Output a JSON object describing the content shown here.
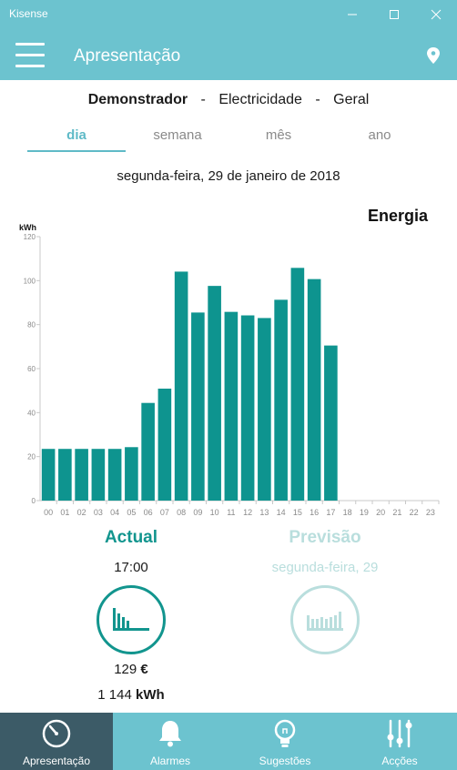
{
  "window": {
    "title": "Kisense"
  },
  "header": {
    "title": "Apresentação"
  },
  "breadcrumb": {
    "site": "Demonstrador",
    "sep1": "-",
    "energy": "Electricidade",
    "sep2": "-",
    "scope": "Geral"
  },
  "tabs": [
    {
      "label": "dia",
      "active": true
    },
    {
      "label": "semana",
      "active": false
    },
    {
      "label": "mês",
      "active": false
    },
    {
      "label": "ano",
      "active": false
    }
  ],
  "date_label": "segunda-feira, 29 de janeiro de 2018",
  "chart_title": "Energia",
  "chart_data": {
    "type": "bar",
    "title": "Energia",
    "ylabel": "kWh",
    "xlabel": "",
    "ylim": [
      0,
      120
    ],
    "yticks": [
      0,
      20,
      40,
      60,
      80,
      100,
      120
    ],
    "categories": [
      "00",
      "01",
      "02",
      "03",
      "04",
      "05",
      "06",
      "07",
      "08",
      "09",
      "10",
      "11",
      "12",
      "13",
      "14",
      "15",
      "16",
      "17",
      "18",
      "19",
      "20",
      "21",
      "22",
      "23"
    ],
    "values": [
      23.5,
      23.5,
      23.5,
      23.5,
      23.5,
      24.3,
      44.4,
      50.9,
      104.1,
      85.5,
      97.6,
      85.8,
      84.2,
      83.0,
      91.3,
      105.8,
      100.7,
      70.5,
      null,
      null,
      null,
      null,
      null,
      null
    ],
    "bar_color": "#0e948f",
    "grid": false
  },
  "actual": {
    "label": "Actual",
    "time": "17:00",
    "cost_value": "129",
    "cost_unit": "€",
    "energy_value": "1 144",
    "energy_unit": "kWh"
  },
  "forecast": {
    "label": "Previsão",
    "day": "segunda-feira, 29"
  },
  "colors": {
    "accent": "#6cc3cf",
    "bar": "#0e948f",
    "nav_active": "#3c5b67",
    "forecast": "#b9dedd"
  },
  "nav": [
    {
      "label": "Apresentação",
      "icon": "gauge-icon",
      "active": true
    },
    {
      "label": "Alarmes",
      "icon": "bell-icon",
      "active": false
    },
    {
      "label": "Sugestões",
      "icon": "lightbulb-icon",
      "active": false
    },
    {
      "label": "Acções",
      "icon": "sliders-icon",
      "active": false
    }
  ]
}
